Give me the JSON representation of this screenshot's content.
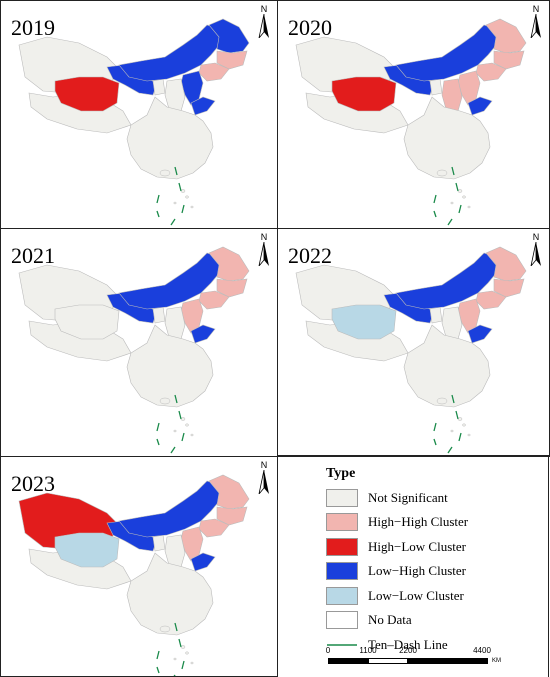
{
  "colors": {
    "not_significant": "#f0f0ec",
    "high_high": "#f2b5b0",
    "high_low": "#e21c1c",
    "low_high": "#1a3fdc",
    "low_low": "#b8d8e6",
    "no_data": "#ffffff",
    "ten_dash": "#1a8a4a",
    "border": "#bbbbbb"
  },
  "north_label": "N",
  "panels": [
    {
      "year": "2019",
      "regions": {
        "xinjiang": "not_significant",
        "tibet": "not_significant",
        "qinghai": "high_low",
        "inner_mongolia": "low_high",
        "heilongjiang": "low_high",
        "jilin": "high_high",
        "liaoning": "high_high",
        "beijing_hebei": "low_high",
        "shanxi": "not_significant",
        "shandong": "low_high",
        "gansu": "low_high",
        "ningxia": "not_significant"
      }
    },
    {
      "year": "2020",
      "regions": {
        "xinjiang": "not_significant",
        "tibet": "not_significant",
        "qinghai": "high_low",
        "inner_mongolia": "low_high",
        "heilongjiang": "high_high",
        "jilin": "high_high",
        "liaoning": "high_high",
        "beijing_hebei": "high_high",
        "shanxi": "high_high",
        "shandong": "low_high",
        "gansu": "low_high",
        "ningxia": "not_significant"
      }
    },
    {
      "year": "2021",
      "regions": {
        "xinjiang": "not_significant",
        "tibet": "not_significant",
        "qinghai": "not_significant",
        "inner_mongolia": "low_high",
        "heilongjiang": "high_high",
        "jilin": "high_high",
        "liaoning": "high_high",
        "beijing_hebei": "high_high",
        "shanxi": "not_significant",
        "shandong": "low_high",
        "gansu": "low_high",
        "ningxia": "not_significant"
      }
    },
    {
      "year": "2022",
      "regions": {
        "xinjiang": "not_significant",
        "tibet": "not_significant",
        "qinghai": "low_low",
        "inner_mongolia": "low_high",
        "heilongjiang": "high_high",
        "jilin": "high_high",
        "liaoning": "high_high",
        "beijing_hebei": "high_high",
        "shanxi": "not_significant",
        "shandong": "low_high",
        "gansu": "low_high",
        "ningxia": "not_significant"
      }
    },
    {
      "year": "2023",
      "regions": {
        "xinjiang": "high_low",
        "tibet": "not_significant",
        "qinghai": "low_low",
        "inner_mongolia": "low_high",
        "heilongjiang": "high_high",
        "jilin": "high_high",
        "liaoning": "high_high",
        "beijing_hebei": "high_high",
        "shanxi": "not_significant",
        "shandong": "low_high",
        "gansu": "low_high",
        "ningxia": "not_significant"
      }
    }
  ],
  "legend": {
    "title": "Type",
    "items": [
      {
        "label": "Not Significant",
        "key": "not_significant"
      },
      {
        "label": "High−High Cluster",
        "key": "high_high"
      },
      {
        "label": "High−Low Cluster",
        "key": "high_low"
      },
      {
        "label": "Low−High Cluster",
        "key": "low_high"
      },
      {
        "label": "Low−Low Cluster",
        "key": "low_low"
      },
      {
        "label": "No Data",
        "key": "no_data"
      }
    ],
    "ten_dash_label": "Ten–Dash Line"
  },
  "scale_bar": {
    "ticks": [
      "0",
      "1100",
      "2200",
      "4400"
    ],
    "unit": "KM"
  }
}
